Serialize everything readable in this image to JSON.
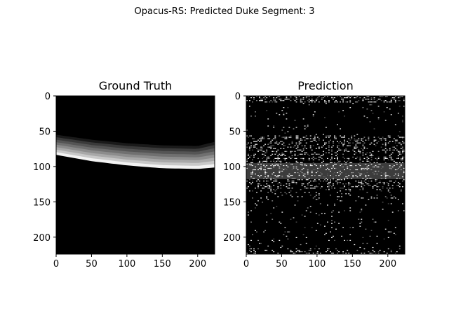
{
  "suptitle": "Opacus-RS: Predicted Duke Segment: 3",
  "chart_data": [
    {
      "type": "heatmap",
      "title": "Ground Truth",
      "xlim": [
        0,
        224
      ],
      "ylim": [
        224,
        0
      ],
      "xticks": [
        0,
        50,
        100,
        150,
        200
      ],
      "yticks": [
        0,
        50,
        100,
        150,
        200
      ],
      "colormap": "gray",
      "layer_top_boundary": [
        [
          0,
          55
        ],
        [
          50,
          62
        ],
        [
          100,
          67
        ],
        [
          150,
          70
        ],
        [
          200,
          71
        ],
        [
          224,
          65
        ]
      ],
      "layer_bottom_boundary": [
        [
          0,
          83
        ],
        [
          50,
          92
        ],
        [
          100,
          98
        ],
        [
          150,
          102
        ],
        [
          200,
          103
        ],
        [
          224,
          101
        ]
      ]
    },
    {
      "type": "heatmap",
      "title": "Prediction",
      "xlim": [
        0,
        224
      ],
      "ylim": [
        224,
        0
      ],
      "xticks": [
        0,
        50,
        100,
        150,
        200
      ],
      "yticks": [
        0,
        50,
        100,
        150,
        200
      ],
      "colormap": "gray",
      "noisy_band_top": 55,
      "noisy_band_bottom": 130
    }
  ]
}
